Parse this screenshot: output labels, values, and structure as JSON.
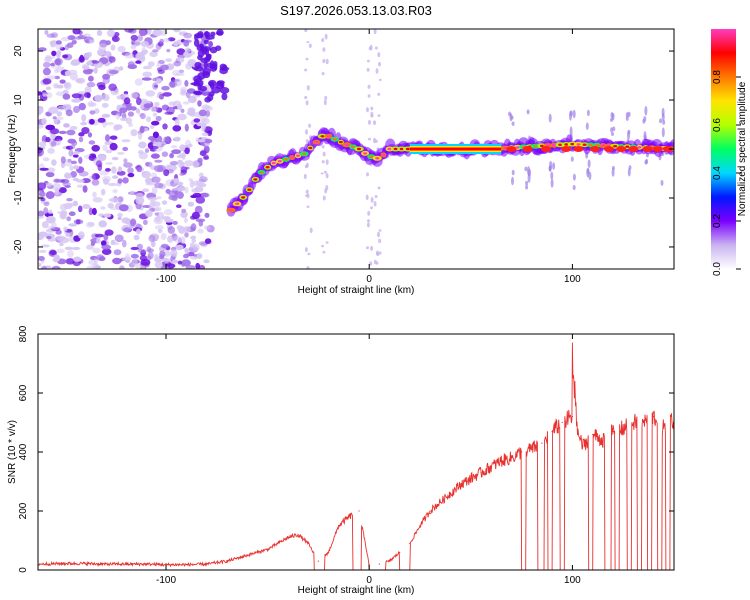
{
  "figure": {
    "title": "S197.2026.053.13.03.R03"
  },
  "chart_data": [
    {
      "type": "heatmap",
      "xlabel": "Height of straight line (km)",
      "ylabel": "Frequency (Hz)",
      "xlim": [
        -163,
        150
      ],
      "ylim": [
        -24.5,
        24.5
      ],
      "xticks": [
        -100,
        0,
        100
      ],
      "yticks": [
        -20,
        -10,
        0,
        10,
        20
      ],
      "colorbar": {
        "label": "Normalized spectral amplitude",
        "range": [
          0,
          1
        ],
        "ticks": [
          "0.0",
          "0.2",
          "0.4",
          "0.6",
          "0.8"
        ],
        "colors": [
          "#ffffff",
          "#c9b3f0",
          "#7a00ff",
          "#0018ff",
          "#00d8ff",
          "#00ff60",
          "#b4ff00",
          "#ffe400",
          "#ff7800",
          "#ff0000",
          "#ff3cc0"
        ]
      },
      "features": [
        {
          "name": "noise",
          "x": [
            -163,
            -78
          ],
          "f": [
            -24.5,
            24.5
          ]
        },
        {
          "name": "ridge",
          "points": [
            [
              -68,
              -12.5
            ],
            [
              -60,
              -9
            ],
            [
              -55,
              -5.5
            ],
            [
              -48,
              -3
            ],
            [
              -40,
              -2
            ],
            [
              -32,
              -1
            ],
            [
              -22,
              3
            ],
            [
              -12,
              1
            ],
            [
              -5,
              0
            ],
            [
              0,
              -1.5
            ],
            [
              5,
              -2
            ],
            [
              10,
              0
            ],
            [
              20,
              0
            ],
            [
              60,
              0
            ],
            [
              100,
              1
            ],
            [
              150,
              0
            ]
          ]
        },
        {
          "name": "carrier",
          "x": [
            20,
            65
          ],
          "f": 0
        }
      ]
    },
    {
      "type": "line",
      "xlabel": "Height of straight line (km)",
      "ylabel": "SNR (10 * v/v)",
      "xlim": [
        -163,
        150
      ],
      "ylim": [
        0,
        800
      ],
      "xticks": [
        -100,
        0,
        100
      ],
      "yticks": [
        0,
        200,
        400,
        600,
        800
      ],
      "color": "#e8302e",
      "x": [
        -163,
        -150,
        -140,
        -130,
        -120,
        -110,
        -100,
        -90,
        -80,
        -70,
        -65,
        -60,
        -55,
        -50,
        -45,
        -40,
        -35,
        -30,
        -25,
        -20,
        -15,
        -10,
        -5,
        0,
        5,
        10,
        15,
        20,
        25,
        30,
        35,
        40,
        45,
        50,
        55,
        60,
        65,
        70,
        75,
        80,
        85,
        90,
        95,
        100,
        105,
        110,
        115,
        120,
        125,
        130,
        135,
        140,
        145,
        150
      ],
      "y": [
        20,
        22,
        22,
        20,
        20,
        20,
        18,
        18,
        20,
        30,
        40,
        50,
        60,
        70,
        90,
        110,
        120,
        90,
        30,
        60,
        150,
        180,
        200,
        20,
        20,
        30,
        60,
        90,
        150,
        200,
        230,
        260,
        290,
        310,
        330,
        350,
        370,
        380,
        400,
        410,
        430,
        470,
        500,
        520,
        420,
        460,
        440,
        470,
        480,
        500,
        500,
        520,
        480,
        510
      ],
      "drops_to_zero": [
        [
          -27,
          -22
        ],
        [
          -8,
          -4
        ],
        [
          0,
          8
        ],
        [
          15,
          20
        ],
        [
          75,
          77
        ],
        [
          83,
          86
        ],
        [
          88,
          90
        ],
        [
          94,
          96
        ],
        [
          108,
          110
        ],
        [
          116,
          119
        ],
        [
          121,
          123
        ],
        [
          127,
          129
        ],
        [
          132,
          134
        ],
        [
          137,
          139
        ],
        [
          142,
          144
        ],
        [
          146,
          148
        ]
      ],
      "spike": {
        "x": 101,
        "y": 800
      }
    }
  ]
}
